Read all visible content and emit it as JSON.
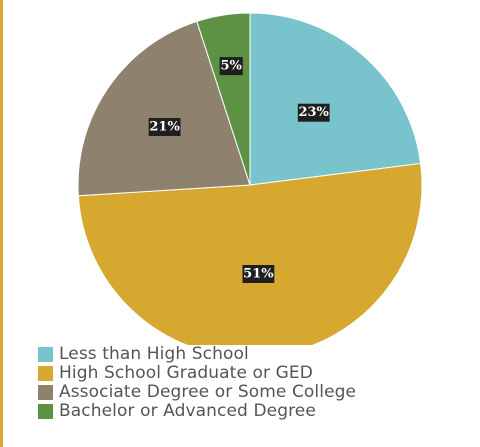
{
  "chart_data": {
    "type": "pie",
    "title": "",
    "start_angle_deg": 0,
    "direction": "clockwise",
    "slices": [
      {
        "label": "Less than High School",
        "value": 23,
        "display": "23%",
        "color": "#79c3cc"
      },
      {
        "label": "High School Graduate or GED",
        "value": 51,
        "display": "51%",
        "color": "#d6a830"
      },
      {
        "label": "Associate Degree or Some College",
        "value": 21,
        "display": "21%",
        "color": "#8e816d"
      },
      {
        "label": "Bachelor or Advanced Degree",
        "value": 5,
        "display": "5%",
        "color": "#5d9245"
      }
    ],
    "legend_position": "bottom-left"
  }
}
